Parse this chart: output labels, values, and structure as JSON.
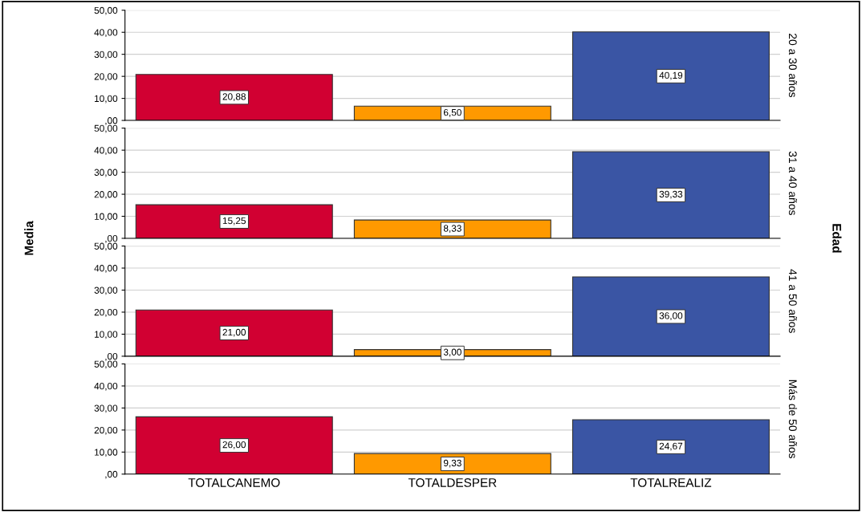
{
  "chart_data": [
    {
      "type": "bar",
      "y2label": "20 a 30 años",
      "categories": [
        null,
        null,
        null
      ],
      "values": [
        20.88,
        6.5,
        40.19
      ],
      "colors": [
        "#d10032",
        "#ff9900",
        "#3a55a4"
      ],
      "value_labels": [
        "20,88",
        "6,50",
        "40,19"
      ],
      "ylim": [
        0,
        50
      ],
      "yticks": [
        {
          "value": 0,
          "label": ",00"
        },
        {
          "value": 10,
          "label": "10,00"
        },
        {
          "value": 20,
          "label": "20,00"
        },
        {
          "value": 30,
          "label": "30,00"
        },
        {
          "value": 40,
          "label": "40,00"
        },
        {
          "value": 50,
          "label": "50,00"
        }
      ],
      "grid": "y",
      "tick_labels": "y"
    },
    {
      "type": "bar",
      "ylabel": "Media",
      "annotations": [
        "Edad"
      ],
      "y2label": "31 a 40 años",
      "categories": [
        null,
        null,
        null
      ],
      "values": [
        15.25,
        8.33,
        39.33
      ],
      "colors": [
        "#d10032",
        "#ff9900",
        "#3a55a4"
      ],
      "value_labels": [
        "15,25",
        "8,33",
        "39,33"
      ],
      "ylim": [
        0,
        50
      ],
      "yticks": [
        {
          "value": 0,
          "label": ",00"
        },
        {
          "value": 10,
          "label": "10,00"
        },
        {
          "value": 20,
          "label": "20,00"
        },
        {
          "value": 30,
          "label": "30,00"
        },
        {
          "value": 40,
          "label": "40,00"
        },
        {
          "value": 50,
          "label": "50,00"
        }
      ],
      "grid": "y",
      "tick_labels": "y"
    },
    {
      "type": "bar",
      "y2label": "41 a 50 años",
      "categories": [
        null,
        null,
        null
      ],
      "values": [
        21.0,
        3.0,
        36.0
      ],
      "colors": [
        "#d10032",
        "#ff9900",
        "#3a55a4"
      ],
      "value_labels": [
        "21,00",
        "3,00",
        "36,00"
      ],
      "ylim": [
        0,
        50
      ],
      "yticks": [
        {
          "value": 0,
          "label": ",00"
        },
        {
          "value": 10,
          "label": "10,00"
        },
        {
          "value": 20,
          "label": "20,00"
        },
        {
          "value": 30,
          "label": "30,00"
        },
        {
          "value": 40,
          "label": "40,00"
        },
        {
          "value": 50,
          "label": "50,00"
        }
      ],
      "grid": "y",
      "tick_labels": "y"
    },
    {
      "type": "bar",
      "y2label": "Más de 50 años",
      "categories": [
        "TOTALCANEMO",
        "TOTALDESPER",
        "TOTALREALIZ"
      ],
      "values": [
        26.0,
        9.33,
        24.67
      ],
      "colors": [
        "#d10032",
        "#ff9900",
        "#3a55a4"
      ],
      "value_labels": [
        "26,00",
        "9,33",
        "24,67"
      ],
      "ylim": [
        0,
        50
      ],
      "yticks": [
        {
          "value": 0,
          "label": ",00"
        },
        {
          "value": 10,
          "label": "10,00"
        },
        {
          "value": 20,
          "label": "20,00"
        },
        {
          "value": 30,
          "label": "30,00"
        },
        {
          "value": 40,
          "label": "40,00"
        },
        {
          "value": 50,
          "label": "50,00"
        }
      ],
      "grid": "y"
    }
  ]
}
